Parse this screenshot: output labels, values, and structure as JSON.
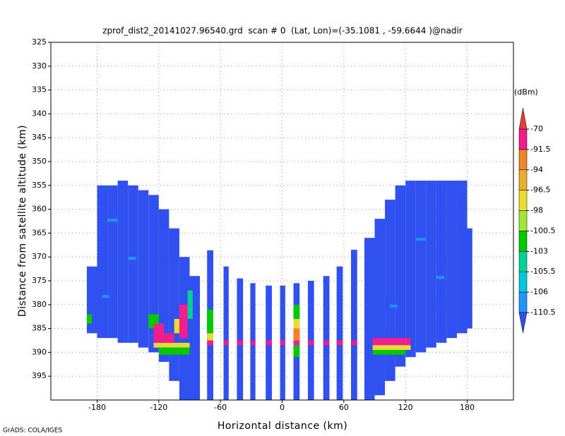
{
  "chart_data": {
    "type": "swath",
    "title": "zprof_dist2_20141027.96540.grd  scan # 0  (Lat, Lon)=(-35.1081 , -59.6644 )@nadir",
    "x_label": "Horizontal distance (km)",
    "y_label": "Distance from satellite altitude (km)",
    "footer": "GrADS: COLA/IGES",
    "xlim": [
      -225,
      225
    ],
    "xticks": [
      -180,
      -120,
      -60,
      0,
      60,
      120,
      180
    ],
    "ylim": [
      325,
      400
    ],
    "y_reversed": true,
    "yticks": [
      325,
      330,
      335,
      340,
      345,
      350,
      355,
      360,
      365,
      370,
      375,
      380,
      385,
      390,
      395
    ],
    "grid": true,
    "colorbar": {
      "unit": "(dBm)",
      "levels": [
        -110.5,
        -106,
        -105.5,
        -103,
        -100.5,
        -98,
        -96.5,
        -94,
        -91.5,
        -70
      ],
      "colors": [
        "#3050f0",
        "#1e96ff",
        "#00c8dc",
        "#00d296",
        "#00c800",
        "#a0e632",
        "#e6dc32",
        "#e6af2d",
        "#f08228",
        "#f01e8c",
        "#e63c3c"
      ]
    },
    "fill_value": -111,
    "columns": [
      {
        "x0": -190,
        "x1": -180,
        "top": 372,
        "bottom": 386
      },
      {
        "x0": -180,
        "x1": -170,
        "top": 355,
        "bottom": 387
      },
      {
        "x0": -170,
        "x1": -160,
        "top": 355,
        "bottom": 387
      },
      {
        "x0": -160,
        "x1": -150,
        "top": 354,
        "bottom": 388
      },
      {
        "x0": -150,
        "x1": -140,
        "top": 355,
        "bottom": 388
      },
      {
        "x0": -140,
        "x1": -130,
        "top": 356,
        "bottom": 389
      },
      {
        "x0": -130,
        "x1": -120,
        "top": 357,
        "bottom": 390
      },
      {
        "x0": -120,
        "x1": -110,
        "top": 360,
        "bottom": 392
      },
      {
        "x0": -110,
        "x1": -100,
        "top": 364,
        "bottom": 396
      },
      {
        "x0": -100,
        "x1": -90,
        "top": 370,
        "bottom": 400
      },
      {
        "x0": -90,
        "x1": -80,
        "top": 374,
        "bottom": 400
      },
      {
        "x0": -73,
        "x1": -67,
        "top": 368.6,
        "bottom": 400
      },
      {
        "x0": -57,
        "x1": -52,
        "top": 372,
        "bottom": 400
      },
      {
        "x0": -44,
        "x1": -38,
        "top": 374.5,
        "bottom": 400
      },
      {
        "x0": -31,
        "x1": -26,
        "top": 375.5,
        "bottom": 400
      },
      {
        "x0": -16,
        "x1": -10,
        "top": 376,
        "bottom": 400
      },
      {
        "x0": -2,
        "x1": 3,
        "top": 376,
        "bottom": 400
      },
      {
        "x0": 11,
        "x1": 17,
        "top": 375.5,
        "bottom": 400
      },
      {
        "x0": 25,
        "x1": 31,
        "top": 375,
        "bottom": 400
      },
      {
        "x0": 40,
        "x1": 46,
        "top": 374,
        "bottom": 400
      },
      {
        "x0": 53,
        "x1": 59,
        "top": 372,
        "bottom": 400
      },
      {
        "x0": 67,
        "x1": 73,
        "top": 368.5,
        "bottom": 400
      },
      {
        "x0": 80,
        "x1": 90,
        "top": 366,
        "bottom": 400
      },
      {
        "x0": 90,
        "x1": 100,
        "top": 362,
        "bottom": 399
      },
      {
        "x0": 100,
        "x1": 110,
        "top": 358,
        "bottom": 396
      },
      {
        "x0": 110,
        "x1": 120,
        "top": 355,
        "bottom": 393
      },
      {
        "x0": 120,
        "x1": 130,
        "top": 354,
        "bottom": 391
      },
      {
        "x0": 130,
        "x1": 140,
        "top": 354,
        "bottom": 390
      },
      {
        "x0": 140,
        "x1": 150,
        "top": 354,
        "bottom": 389
      },
      {
        "x0": 150,
        "x1": 160,
        "top": 354,
        "bottom": 388
      },
      {
        "x0": 160,
        "x1": 170,
        "top": 354,
        "bottom": 387
      },
      {
        "x0": 170,
        "x1": 180,
        "top": 354,
        "bottom": 386
      },
      {
        "x0": 180,
        "x1": 185,
        "top": 364,
        "bottom": 385
      }
    ],
    "echoes": [
      {
        "x0": -170,
        "x1": -160,
        "y0": 362,
        "y1": 362.6,
        "value": -108
      },
      {
        "x0": -150,
        "x1": -142,
        "y0": 370,
        "y1": 370.6,
        "value": -108
      },
      {
        "x0": -175,
        "x1": -168,
        "y0": 378,
        "y1": 378.6,
        "value": -108
      },
      {
        "x0": 130,
        "x1": 140,
        "y0": 366,
        "y1": 366.6,
        "value": -108
      },
      {
        "x0": 150,
        "x1": 158,
        "y0": 374,
        "y1": 374.6,
        "value": -108
      },
      {
        "x0": 105,
        "x1": 112,
        "y0": 380,
        "y1": 380.6,
        "value": -108
      },
      {
        "x0": -190,
        "x1": -185,
        "y0": 382,
        "y1": 384,
        "value": -102
      },
      {
        "x0": -130,
        "x1": -120,
        "y0": 382,
        "y1": 385,
        "value": -102
      },
      {
        "x0": -92,
        "x1": -87,
        "y0": 377,
        "y1": 383,
        "value": -104
      },
      {
        "x0": -125,
        "x1": -90,
        "y0": 388,
        "y1": 389,
        "value": -97
      },
      {
        "x0": -120,
        "x1": -90,
        "y0": 389,
        "y1": 390.5,
        "value": -102
      },
      {
        "x0": -125,
        "x1": -115,
        "y0": 384,
        "y1": 388,
        "value": -80
      },
      {
        "x0": -115,
        "x1": -105,
        "y0": 386,
        "y1": 388,
        "value": -80
      },
      {
        "x0": -105,
        "x1": -95,
        "y0": 383,
        "y1": 386,
        "value": -97
      },
      {
        "x0": -100,
        "x1": -92,
        "y0": 380,
        "y1": 387,
        "value": -80
      },
      {
        "x0": -73,
        "x1": -67,
        "y0": 381,
        "y1": 386,
        "value": -102
      },
      {
        "x0": -73,
        "x1": -67,
        "y0": 386,
        "y1": 387.5,
        "value": -97
      },
      {
        "x0": 11,
        "x1": 17,
        "y0": 380,
        "y1": 383,
        "value": -102
      },
      {
        "x0": 11,
        "x1": 17,
        "y0": 383,
        "y1": 385,
        "value": -97
      },
      {
        "x0": 11,
        "x1": 17,
        "y0": 385,
        "y1": 387.5,
        "value": -93
      },
      {
        "x0": 11,
        "x1": 17,
        "y0": 388.5,
        "y1": 391,
        "value": -102
      },
      {
        "x0": -73,
        "x1": -67,
        "y0": 387.5,
        "y1": 388.5,
        "value": -80
      },
      {
        "x0": -57,
        "x1": -52,
        "y0": 387.5,
        "y1": 388.5,
        "value": -80
      },
      {
        "x0": -44,
        "x1": -38,
        "y0": 387.5,
        "y1": 388.5,
        "value": -80
      },
      {
        "x0": -31,
        "x1": -26,
        "y0": 387.5,
        "y1": 388.5,
        "value": -80
      },
      {
        "x0": -16,
        "x1": -10,
        "y0": 387.5,
        "y1": 388.5,
        "value": -80
      },
      {
        "x0": -2,
        "x1": 3,
        "y0": 387.5,
        "y1": 388.5,
        "value": -80
      },
      {
        "x0": 11,
        "x1": 17,
        "y0": 387.5,
        "y1": 388.5,
        "value": -80
      },
      {
        "x0": 25,
        "x1": 31,
        "y0": 387.5,
        "y1": 388.5,
        "value": -80
      },
      {
        "x0": 40,
        "x1": 46,
        "y0": 387.5,
        "y1": 388.5,
        "value": -80
      },
      {
        "x0": 53,
        "x1": 59,
        "y0": 387.5,
        "y1": 388.5,
        "value": -80
      },
      {
        "x0": 67,
        "x1": 73,
        "y0": 387.5,
        "y1": 388.5,
        "value": -80
      },
      {
        "x0": 88,
        "x1": 125,
        "y0": 387,
        "y1": 388.5,
        "value": -80
      },
      {
        "x0": 88,
        "x1": 125,
        "y0": 388.5,
        "y1": 389.5,
        "value": -97
      },
      {
        "x0": 88,
        "x1": 120,
        "y0": 389.5,
        "y1": 390.5,
        "value": -102
      }
    ]
  }
}
